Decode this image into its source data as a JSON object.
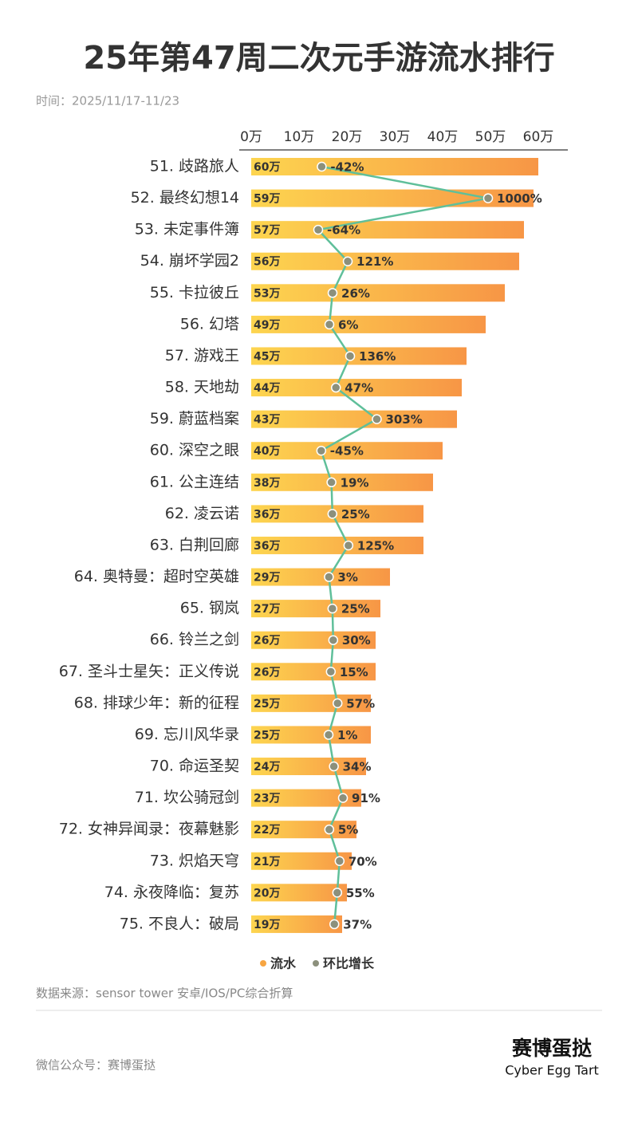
{
  "chart_data": {
    "type": "bar",
    "orientation": "horizontal",
    "title": "25年第47周二次元手游流水排行",
    "subtitle": "时间：2025/11/17-11/23",
    "categories": [
      "51. 歧路旅人",
      "52. 最终幻想14",
      "53. 未定事件簿",
      "54. 崩坏学园2",
      "55. 卡拉彼丘",
      "56. 幻塔",
      "57. 游戏王",
      "58. 天地劫",
      "59. 蔚蓝档案",
      "60. 深空之眼",
      "61. 公主连结",
      "62. 凌云诺",
      "63. 白荆回廊",
      "64. 奥特曼：超时空英雄",
      "65. 钢岚",
      "66. 铃兰之剑",
      "67. 圣斗士星矢：正义传说",
      "68. 排球少年：新的征程",
      "69. 忘川风华录",
      "70. 命运圣契",
      "71. 坎公骑冠剑",
      "72. 女神异闻录：夜幕魅影",
      "73. 炽焰天穹",
      "74. 永夜降临：复苏",
      "75. 不良人：破局"
    ],
    "series": [
      {
        "name": "流水",
        "color": "#f7a541",
        "values": [
          60,
          59,
          57,
          56,
          53,
          49,
          45,
          44,
          43,
          40,
          38,
          36,
          36,
          29,
          27,
          26,
          26,
          25,
          25,
          24,
          23,
          22,
          21,
          20,
          19
        ],
        "value_labels": [
          "60万",
          "59万",
          "57万",
          "56万",
          "53万",
          "49万",
          "45万",
          "44万",
          "43万",
          "40万",
          "38万",
          "36万",
          "36万",
          "29万",
          "27万",
          "26万",
          "26万",
          "25万",
          "25万",
          "24万",
          "23万",
          "22万",
          "21万",
          "20万",
          "19万"
        ]
      },
      {
        "name": "环比增长",
        "type": "line",
        "color": "#5fbf9a",
        "values": [
          -42,
          1000,
          -64,
          121,
          26,
          6,
          136,
          47,
          303,
          -45,
          19,
          25,
          125,
          3,
          25,
          30,
          15,
          57,
          1,
          34,
          91,
          5,
          70,
          55,
          37
        ],
        "value_labels": [
          "-42%",
          "1000%",
          "-64%",
          "121%",
          "26%",
          "6%",
          "136%",
          "47%",
          "303%",
          "-45%",
          "19%",
          "25%",
          "125%",
          "3%",
          "25%",
          "30%",
          "15%",
          "57%",
          "1%",
          "34%",
          "91%",
          "5%",
          "70%",
          "55%",
          "37%"
        ]
      }
    ],
    "xlim": [
      0,
      66
    ],
    "xticks": [
      {
        "value": 0,
        "label": "0万"
      },
      {
        "value": 10,
        "label": "10万"
      },
      {
        "value": 20,
        "label": "20万"
      },
      {
        "value": 30,
        "label": "30万"
      },
      {
        "value": 40,
        "label": "40万"
      },
      {
        "value": 50,
        "label": "50万"
      },
      {
        "value": 60,
        "label": "60万"
      }
    ],
    "source": "数据来源：sensor tower 安卓/IOS/PC综合折算"
  },
  "footer": {
    "account": "微信公众号：赛博蛋挞",
    "brand": "赛博蛋挞",
    "brand_en": "Cyber Egg Tart"
  }
}
